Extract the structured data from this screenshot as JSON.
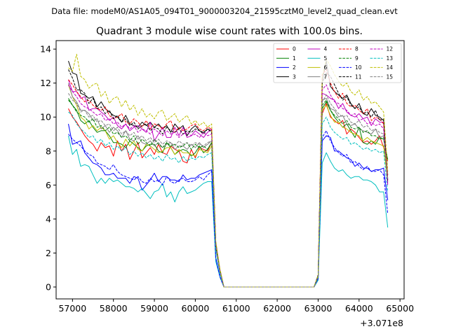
{
  "chart_data": {
    "type": "line",
    "suptitle": "Data file: modeM0/AS1A05_094T01_9000003204_21595cztM0_level2_quad_clean.evt",
    "title": "Quadrant 3 module wise count rates with 100.0s bins.",
    "xlabel": "",
    "ylabel": "",
    "x_offset_label": "+3.071e8",
    "xlim": [
      56600,
      65100
    ],
    "ylim": [
      -0.7,
      14.5
    ],
    "x_ticks": [
      57000,
      58000,
      59000,
      60000,
      61000,
      62000,
      63000,
      64000,
      65000
    ],
    "x_tick_labels": [
      "57000",
      "58000",
      "59000",
      "60000",
      "61000",
      "62000",
      "63000",
      "64000",
      "65000"
    ],
    "y_ticks": [
      0,
      2,
      4,
      6,
      8,
      10,
      12,
      14
    ],
    "y_tick_labels": [
      "0",
      "2",
      "4",
      "6",
      "8",
      "10",
      "12",
      "14"
    ],
    "legend_position": "top-right",
    "x_segments": [
      {
        "start": 56900,
        "end": 60400,
        "step": 100
      },
      {
        "values": [
          60500,
          60600,
          60700
        ]
      },
      {
        "start": 60800,
        "end": 62900,
        "step": 100
      },
      {
        "start": 63000,
        "end": 64700,
        "step": 100
      }
    ],
    "series": [
      {
        "name": "0",
        "color": "#ff0000",
        "dash": "solid",
        "seg1": [
          10.5,
          10.0,
          9.7,
          9.3,
          8.9,
          8.6,
          8.4,
          8.0,
          8.5,
          8.2,
          8.3,
          7.7,
          8.6,
          8.0,
          8.4,
          7.5,
          8.0,
          8.5,
          7.6,
          7.9,
          8.2,
          7.8,
          8.4,
          7.9,
          7.8,
          8.3,
          8.1,
          8.0,
          7.4,
          7.3,
          8.1,
          7.6,
          8.2,
          8.1,
          8.0,
          8.5
        ],
        "gap": [
          2.4,
          0.9,
          0.0
        ],
        "seg3": [
          0.6,
          10.2,
          10.8,
          10.0,
          9.8,
          9.6,
          9.8,
          9.0,
          9.3,
          9.1,
          8.8,
          8.5,
          8.6,
          8.4,
          8.6,
          8.9,
          8.2,
          7.4
        ]
      },
      {
        "name": "1",
        "color": "#008000",
        "dash": "solid",
        "seg1": [
          11.1,
          10.7,
          10.4,
          9.8,
          9.6,
          9.8,
          9.4,
          9.1,
          9.2,
          9.2,
          8.9,
          8.5,
          8.5,
          8.4,
          8.2,
          8.6,
          8.4,
          8.2,
          8.0,
          8.3,
          8.4,
          8.4,
          8.0,
          7.9,
          8.5,
          8.2,
          7.8,
          8.0,
          8.1,
          8.0,
          7.7,
          7.9,
          8.3,
          7.9,
          8.1,
          8.5
        ],
        "gap": [
          2.4,
          0.9,
          0.0
        ],
        "seg3": [
          0.7,
          10.5,
          10.9,
          10.4,
          10.0,
          9.7,
          9.4,
          9.6,
          9.2,
          8.8,
          9.4,
          8.5,
          8.4,
          8.6,
          8.4,
          8.8,
          8.7,
          7.5
        ]
      },
      {
        "name": "2",
        "color": "#0000ff",
        "dash": "solid",
        "seg1": [
          9.6,
          8.4,
          8.5,
          8.6,
          7.9,
          7.6,
          7.3,
          7.2,
          7.0,
          6.6,
          6.6,
          6.7,
          6.4,
          6.4,
          6.4,
          6.1,
          6.5,
          6.4,
          5.7,
          6.0,
          6.3,
          6.7,
          6.2,
          6.5,
          6.5,
          6.3,
          6.3,
          6.2,
          6.6,
          6.3,
          6.4,
          6.4,
          6.6,
          6.7,
          6.8,
          6.9
        ],
        "gap": [
          1.7,
          0.6,
          0.0
        ],
        "seg3": [
          0.5,
          8.6,
          8.9,
          8.8,
          8.0,
          8.0,
          7.8,
          7.6,
          7.5,
          7.1,
          7.3,
          7.0,
          7.0,
          6.8,
          6.9,
          6.9,
          7.0,
          5.1
        ]
      },
      {
        "name": "3",
        "color": "#000000",
        "dash": "solid",
        "seg1": [
          13.3,
          12.6,
          12.5,
          11.4,
          11.3,
          11.1,
          11.2,
          10.6,
          10.9,
          10.5,
          10.3,
          10.1,
          10.0,
          9.7,
          10.1,
          9.6,
          9.5,
          9.4,
          9.7,
          9.5,
          9.7,
          9.4,
          9.6,
          9.3,
          9.5,
          9.1,
          9.6,
          9.3,
          9.5,
          8.9,
          9.3,
          9.5,
          9.2,
          9.1,
          9.3,
          9.2
        ],
        "gap": [
          2.6,
          1.0,
          0.0
        ],
        "seg3": [
          0.7,
          12.1,
          13.3,
          11.8,
          11.5,
          11.3,
          11.1,
          11.3,
          10.8,
          10.5,
          10.8,
          10.2,
          10.1,
          10.5,
          10.1,
          10.0,
          9.8,
          6.3
        ]
      },
      {
        "name": "4",
        "color": "#bf00bf",
        "dash": "solid",
        "seg1": [
          12.2,
          11.5,
          11.5,
          11.1,
          11.2,
          10.4,
          10.5,
          10.5,
          10.3,
          10.1,
          9.8,
          10.0,
          9.5,
          9.3,
          9.6,
          9.2,
          9.4,
          9.5,
          9.3,
          9.1,
          9.7,
          8.6,
          9.0,
          9.4,
          8.8,
          8.8,
          9.4,
          8.9,
          9.4,
          8.8,
          8.9,
          9.2,
          9.0,
          8.8,
          9.1,
          9.3
        ],
        "gap": [
          2.5,
          1.0,
          0.0
        ],
        "seg3": [
          0.6,
          11.4,
          11.3,
          11.1,
          11.0,
          10.5,
          10.8,
          10.3,
          10.1,
          10.0,
          10.2,
          9.9,
          10.0,
          9.5,
          9.9,
          9.7,
          9.7,
          6.0
        ]
      },
      {
        "name": "5",
        "color": "#00bfbf",
        "dash": "solid",
        "seg1": [
          8.9,
          7.8,
          8.1,
          7.1,
          7.2,
          7.1,
          6.6,
          6.1,
          6.4,
          6.1,
          6.4,
          6.2,
          6.3,
          6.1,
          5.9,
          5.9,
          5.8,
          5.6,
          5.8,
          5.5,
          5.2,
          5.6,
          5.7,
          6.1,
          5.3,
          5.6,
          5.0,
          5.6,
          5.9,
          5.5,
          5.6,
          5.7,
          5.9,
          6.1,
          6.2,
          6.2
        ],
        "gap": [
          1.5,
          0.6,
          0.0
        ],
        "seg3": [
          0.4,
          7.3,
          7.9,
          7.4,
          7.0,
          6.8,
          6.9,
          6.6,
          6.4,
          6.5,
          6.5,
          6.3,
          6.3,
          6.2,
          6.0,
          5.6,
          5.6,
          3.5
        ]
      },
      {
        "name": "6",
        "color": "#bfbf00",
        "dash": "solid",
        "seg1": [
          11.9,
          11.2,
          10.7,
          10.0,
          9.8,
          9.3,
          9.5,
          9.2,
          9.4,
          9.2,
          8.7,
          8.9,
          8.5,
          8.2,
          8.7,
          8.3,
          8.6,
          8.1,
          8.0,
          8.4,
          8.3,
          8.1,
          7.9,
          8.0,
          8.2,
          8.2,
          7.8,
          8.1,
          7.9,
          7.9,
          7.8,
          7.7,
          8.1,
          8.0,
          7.9,
          8.3
        ],
        "gap": [
          2.3,
          0.9,
          0.0
        ],
        "seg3": [
          0.6,
          10.4,
          10.7,
          10.1,
          9.7,
          9.7,
          9.4,
          9.3,
          9.1,
          9.0,
          8.9,
          8.6,
          8.8,
          8.6,
          8.5,
          8.4,
          8.3,
          6.2
        ]
      },
      {
        "name": "7",
        "color": "#808080",
        "dash": "solid",
        "seg1": [
          12.0,
          11.2,
          10.9,
          10.4,
          10.4,
          10.2,
          9.8,
          9.9,
          9.3,
          9.5,
          9.1,
          9.4,
          9.2,
          8.8,
          9.2,
          8.7,
          8.6,
          8.9,
          8.5,
          8.4,
          8.6,
          8.3,
          8.5,
          8.2,
          8.4,
          8.5,
          8.1,
          8.3,
          8.3,
          8.1,
          8.4,
          8.2,
          8.5,
          8.2,
          8.4,
          8.6
        ],
        "gap": [
          2.4,
          0.9,
          0.0
        ],
        "seg3": [
          0.6,
          11.0,
          11.1,
          10.5,
          10.4,
          10.0,
          10.1,
          9.6,
          9.5,
          9.6,
          9.3,
          9.2,
          9.1,
          9.0,
          9.3,
          8.8,
          8.9,
          6.6
        ]
      },
      {
        "name": "8",
        "color": "#ff0000",
        "dash": "dashed",
        "seg1": [
          12.2,
          11.9,
          11.5,
          11.2,
          10.9,
          11.0,
          10.7,
          10.5,
          10.4,
          10.6,
          10.1,
          9.9,
          10.0,
          10.2,
          9.7,
          9.6,
          9.9,
          9.7,
          9.4,
          9.8,
          9.3,
          9.6,
          9.5,
          9.3,
          9.6,
          9.8,
          9.1,
          9.4,
          9.2,
          9.3,
          9.5,
          9.6,
          9.3,
          9.2,
          9.4,
          9.3
        ],
        "gap": [
          2.6,
          1.0,
          0.0
        ],
        "seg3": [
          0.7,
          12.5,
          12.8,
          12.0,
          11.5,
          11.1,
          11.4,
          10.8,
          10.6,
          10.7,
          10.4,
          10.2,
          10.5,
          9.8,
          10.0,
          9.9,
          9.6,
          6.6
        ]
      },
      {
        "name": "9",
        "color": "#008000",
        "dash": "dashed",
        "seg1": [
          11.0,
          10.7,
          10.3,
          10.1,
          10.0,
          9.7,
          9.9,
          9.4,
          9.5,
          9.2,
          9.4,
          9.0,
          9.1,
          8.8,
          8.9,
          8.6,
          8.9,
          8.4,
          8.7,
          8.5,
          8.3,
          8.7,
          8.4,
          8.2,
          8.5,
          8.3,
          8.4,
          8.2,
          8.3,
          8.5,
          8.1,
          8.4,
          8.2,
          8.3,
          8.1,
          8.5
        ],
        "gap": [
          2.4,
          0.9,
          0.0
        ],
        "seg3": [
          0.6,
          10.7,
          11.0,
          10.4,
          10.1,
          9.9,
          9.6,
          9.8,
          9.4,
          9.3,
          9.4,
          9.1,
          9.2,
          8.9,
          8.9,
          8.7,
          8.8,
          6.4
        ]
      },
      {
        "name": "10",
        "color": "#0000ff",
        "dash": "dashed",
        "seg1": [
          9.0,
          8.7,
          8.5,
          8.3,
          8.0,
          7.8,
          7.7,
          7.3,
          7.2,
          7.1,
          6.9,
          7.2,
          6.8,
          6.6,
          6.5,
          6.4,
          6.3,
          6.5,
          6.2,
          6.1,
          6.4,
          6.2,
          6.3,
          6.0,
          6.5,
          6.2,
          6.1,
          6.3,
          6.4,
          6.2,
          6.2,
          6.3,
          6.5,
          6.3,
          6.6,
          6.8
        ],
        "gap": [
          1.7,
          0.6,
          0.0
        ],
        "seg3": [
          0.5,
          8.8,
          9.2,
          8.6,
          8.2,
          7.9,
          7.7,
          7.8,
          7.3,
          7.4,
          7.1,
          6.9,
          7.1,
          6.8,
          6.8,
          6.9,
          6.6,
          4.3
        ]
      },
      {
        "name": "11",
        "color": "#000000",
        "dash": "dashed",
        "seg1": [
          12.8,
          12.3,
          11.6,
          11.6,
          11.4,
          10.8,
          11.1,
          10.5,
          10.6,
          10.2,
          10.4,
          9.9,
          10.1,
          9.7,
          9.9,
          9.5,
          9.7,
          9.3,
          9.5,
          9.6,
          9.2,
          9.4,
          9.3,
          9.0,
          9.4,
          9.2,
          9.1,
          9.3,
          9.0,
          9.2,
          9.1,
          9.3,
          9.2,
          9.0,
          9.3,
          9.1
        ],
        "gap": [
          2.5,
          1.0,
          0.0
        ],
        "seg3": [
          0.7,
          12.0,
          12.6,
          12.4,
          11.9,
          11.4,
          11.0,
          11.2,
          10.7,
          10.5,
          10.6,
          10.2,
          10.3,
          10.0,
          10.4,
          9.8,
          9.9,
          6.2
        ]
      },
      {
        "name": "12",
        "color": "#bf00bf",
        "dash": "dashed",
        "seg1": [
          11.9,
          11.5,
          11.2,
          10.8,
          10.6,
          10.5,
          10.3,
          10.1,
          10.2,
          9.8,
          9.9,
          9.6,
          9.7,
          9.4,
          9.6,
          9.3,
          9.5,
          9.1,
          9.3,
          9.2,
          9.0,
          9.3,
          9.1,
          8.9,
          9.2,
          9.0,
          9.1,
          8.8,
          9.0,
          9.1,
          8.9,
          9.0,
          8.8,
          9.1,
          8.9,
          9.0
        ],
        "gap": [
          2.5,
          1.0,
          0.0
        ],
        "seg3": [
          0.6,
          11.6,
          11.9,
          11.3,
          10.9,
          10.8,
          10.5,
          10.4,
          10.1,
          10.2,
          9.8,
          9.9,
          9.6,
          9.7,
          9.5,
          9.6,
          9.3,
          6.1
        ]
      },
      {
        "name": "13",
        "color": "#00bfbf",
        "dash": "dashed",
        "seg1": [
          10.3,
          10.1,
          9.6,
          9.3,
          9.1,
          8.8,
          8.9,
          8.5,
          8.7,
          8.3,
          8.5,
          8.1,
          8.3,
          8.0,
          8.2,
          7.8,
          8.0,
          7.7,
          7.9,
          7.6,
          7.8,
          7.5,
          7.7,
          7.4,
          7.8,
          7.5,
          7.6,
          7.3,
          7.7,
          7.4,
          7.6,
          7.5,
          7.7,
          7.6,
          7.8,
          7.9
        ],
        "gap": [
          2.2,
          0.8,
          0.0
        ],
        "seg3": [
          0.6,
          9.6,
          10.0,
          9.4,
          9.1,
          8.9,
          8.7,
          8.8,
          8.4,
          8.5,
          8.3,
          8.1,
          8.2,
          8.0,
          8.1,
          7.9,
          8.0,
          5.6
        ]
      },
      {
        "name": "14",
        "color": "#bfbf00",
        "dash": "dashed",
        "seg1": [
          12.9,
          12.7,
          13.7,
          12.4,
          12.2,
          11.7,
          11.9,
          12.0,
          11.2,
          11.5,
          10.8,
          11.1,
          11.2,
          10.6,
          11.0,
          10.4,
          10.7,
          10.1,
          10.5,
          10.0,
          10.2,
          9.9,
          10.3,
          10.4,
          9.8,
          10.0,
          10.2,
          9.7,
          9.9,
          10.1,
          9.6,
          9.8,
          9.5,
          9.7,
          9.4,
          9.6
        ],
        "gap": [
          2.7,
          1.1,
          0.0
        ],
        "seg3": [
          0.7,
          12.4,
          13.4,
          13.0,
          12.5,
          12.1,
          11.8,
          12.0,
          11.5,
          11.3,
          11.6,
          11.0,
          11.2,
          10.8,
          10.9,
          10.6,
          10.3,
          6.8
        ]
      },
      {
        "name": "15",
        "color": "#808080",
        "dash": "dashed",
        "seg1": [
          11.4,
          11.0,
          10.8,
          10.3,
          10.4,
          10.0,
          10.1,
          9.7,
          9.8,
          9.5,
          9.6,
          9.2,
          9.4,
          9.0,
          9.2,
          8.9,
          9.1,
          8.7,
          8.9,
          8.6,
          8.8,
          8.5,
          8.7,
          8.4,
          8.6,
          8.5,
          8.3,
          8.6,
          8.4,
          8.5,
          8.3,
          8.5,
          8.4,
          8.3,
          8.5,
          8.6
        ],
        "gap": [
          2.4,
          0.9,
          0.0
        ],
        "seg3": [
          0.6,
          10.9,
          11.3,
          10.8,
          10.5,
          10.2,
          10.0,
          10.1,
          9.7,
          9.6,
          9.8,
          9.4,
          9.5,
          9.2,
          9.3,
          9.1,
          9.0,
          6.4
        ]
      }
    ]
  }
}
